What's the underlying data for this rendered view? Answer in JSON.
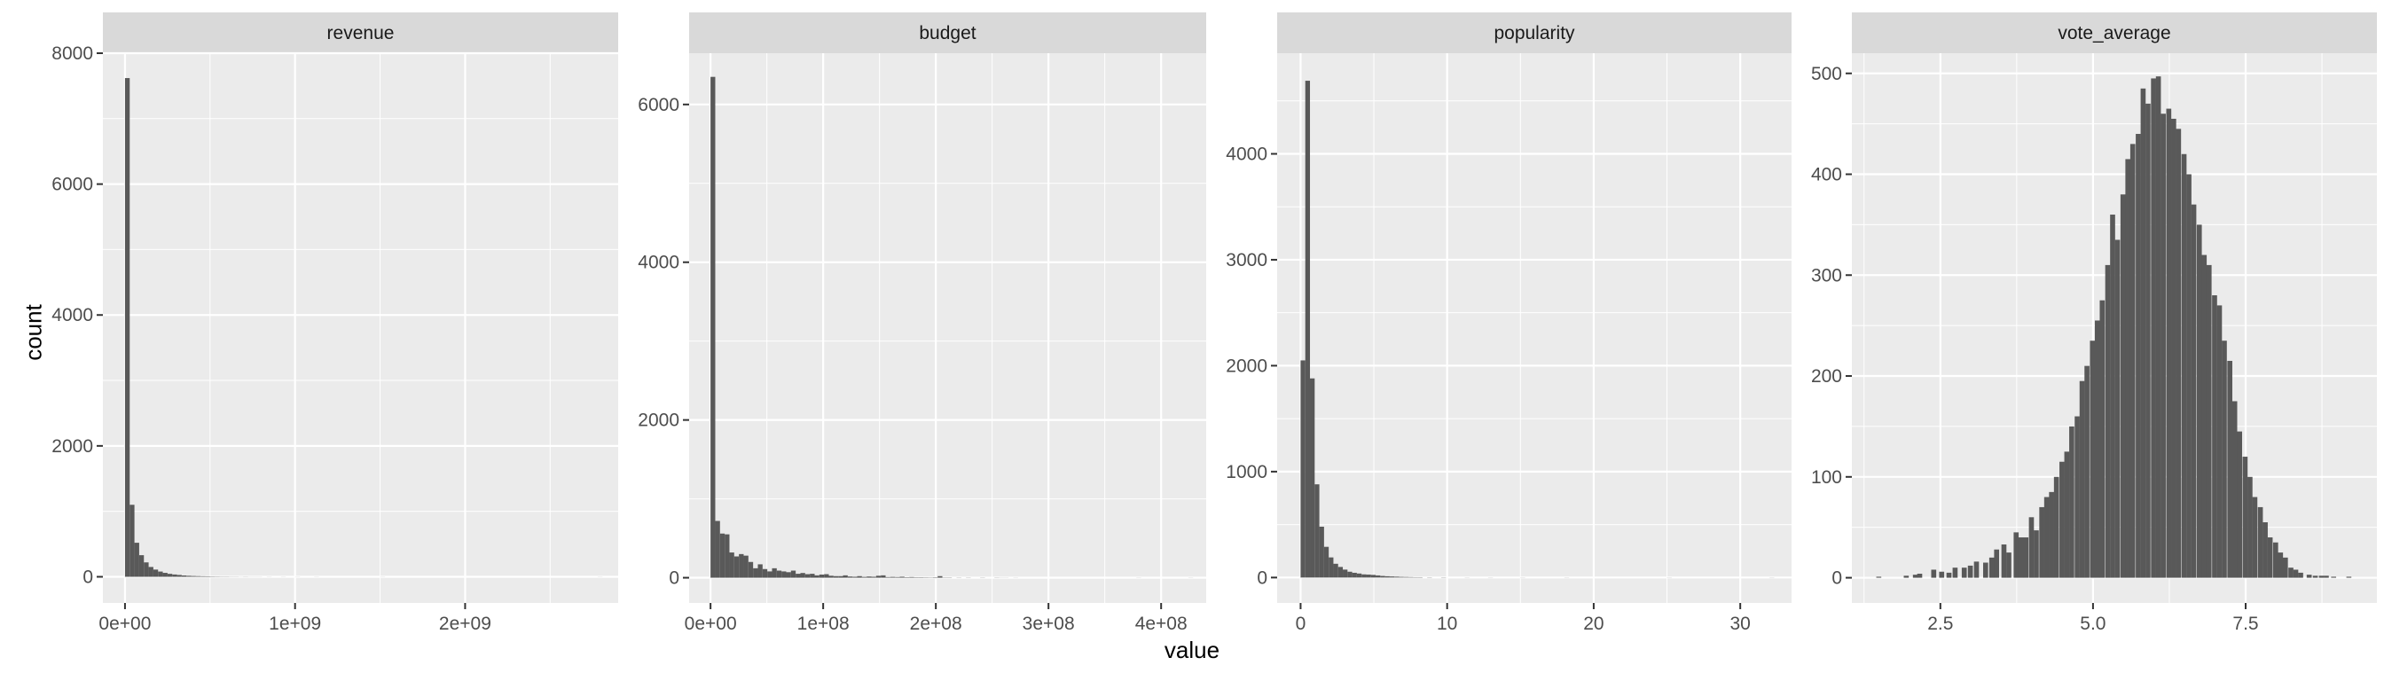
{
  "xlabel": "value",
  "ylabel": "count",
  "colors": {
    "panel_bg": "#EBEBEB",
    "strip_bg": "#D9D9D9",
    "bar": "#595959",
    "grid": "#FFFFFF",
    "text": "#4D4D4D"
  },
  "chart_data": [
    {
      "type": "bar",
      "title": "revenue",
      "xlim": [
        -130000000.0,
        2900000000.0
      ],
      "ylim": [
        -400,
        8000
      ],
      "xticks": [
        0,
        1000000000,
        2000000000
      ],
      "xtick_labels": [
        "0e+00",
        "1e+09",
        "2e+09"
      ],
      "yticks": [
        0,
        2000,
        4000,
        6000,
        8000
      ],
      "ytick_labels": [
        "0",
        "2000",
        "4000",
        "6000",
        "8000"
      ],
      "bin_width": 27800000,
      "bins": [
        [
          0,
          7620
        ],
        [
          27800000,
          1100
        ],
        [
          55600000,
          520
        ],
        [
          83400000,
          330
        ],
        [
          111200000,
          220
        ],
        [
          139000000,
          150
        ],
        [
          166800000,
          110
        ],
        [
          194600000,
          80
        ],
        [
          222400000,
          60
        ],
        [
          250200000,
          45
        ],
        [
          278000000,
          35
        ],
        [
          305800000,
          28
        ],
        [
          333600000,
          20
        ],
        [
          361400000,
          15
        ],
        [
          389200000,
          12
        ],
        [
          417000000,
          10
        ],
        [
          444800000,
          8
        ],
        [
          472600000,
          7
        ],
        [
          500400000,
          5
        ],
        [
          528200000,
          4
        ],
        [
          556000000,
          3
        ],
        [
          583800000,
          3
        ],
        [
          611600000,
          2
        ],
        [
          639400000,
          2
        ],
        [
          667200000,
          1
        ],
        [
          695000000,
          2
        ],
        [
          722800000,
          1
        ],
        [
          750600000,
          1
        ],
        [
          778400000,
          1
        ],
        [
          834000000,
          1
        ],
        [
          917400000,
          1
        ],
        [
          1000800000,
          1
        ],
        [
          1112000000,
          1
        ],
        [
          1501200000,
          1
        ],
        [
          2780000000,
          1
        ]
      ]
    },
    {
      "type": "bar",
      "title": "budget",
      "xlim": [
        -19000000.0,
        440000000.0
      ],
      "ylim": [
        -320,
        6650
      ],
      "xticks": [
        0,
        100000000,
        200000000,
        300000000,
        400000000
      ],
      "xtick_labels": [
        "0e+00",
        "1e+08",
        "2e+08",
        "3e+08",
        "4e+08"
      ],
      "yticks": [
        0,
        2000,
        4000,
        6000
      ],
      "ytick_labels": [
        "0",
        "2000",
        "4000",
        "6000"
      ],
      "bin_width": 4200000,
      "bins": [
        [
          0,
          6350
        ],
        [
          4200000,
          720
        ],
        [
          8400000,
          560
        ],
        [
          12600000,
          550
        ],
        [
          16800000,
          320
        ],
        [
          21000000,
          270
        ],
        [
          25200000,
          300
        ],
        [
          29400000,
          280
        ],
        [
          33600000,
          200
        ],
        [
          37800000,
          120
        ],
        [
          42000000,
          170
        ],
        [
          46200000,
          110
        ],
        [
          50400000,
          80
        ],
        [
          54600000,
          120
        ],
        [
          58800000,
          90
        ],
        [
          63000000,
          80
        ],
        [
          67200000,
          70
        ],
        [
          71400000,
          90
        ],
        [
          75600000,
          50
        ],
        [
          79800000,
          60
        ],
        [
          84000000,
          45
        ],
        [
          88200000,
          50
        ],
        [
          92400000,
          30
        ],
        [
          96600000,
          40
        ],
        [
          100800000,
          45
        ],
        [
          105000000,
          25
        ],
        [
          109200000,
          20
        ],
        [
          113400000,
          20
        ],
        [
          117600000,
          30
        ],
        [
          121800000,
          15
        ],
        [
          126000000,
          12
        ],
        [
          130200000,
          20
        ],
        [
          134400000,
          10
        ],
        [
          138600000,
          15
        ],
        [
          142800000,
          12
        ],
        [
          147000000,
          25
        ],
        [
          151200000,
          30
        ],
        [
          155400000,
          8
        ],
        [
          159600000,
          10
        ],
        [
          163800000,
          8
        ],
        [
          168000000,
          12
        ],
        [
          172200000,
          6
        ],
        [
          176400000,
          8
        ],
        [
          180600000,
          5
        ],
        [
          184800000,
          5
        ],
        [
          189000000,
          4
        ],
        [
          193200000,
          3
        ],
        [
          197400000,
          5
        ],
        [
          201600000,
          20
        ],
        [
          205800000,
          3
        ],
        [
          210000000,
          3
        ],
        [
          218400000,
          2
        ],
        [
          226800000,
          2
        ],
        [
          239400000,
          2
        ],
        [
          252000000,
          2
        ],
        [
          256200000,
          1
        ],
        [
          260400000,
          1
        ],
        [
          268800000,
          1
        ],
        [
          378000000,
          1
        ],
        [
          424200000,
          1
        ]
      ]
    },
    {
      "type": "bar",
      "title": "popularity",
      "xlim": [
        -1.6,
        33.5
      ],
      "ylim": [
        -240,
        4950
      ],
      "xticks": [
        0,
        10,
        20,
        30
      ],
      "xtick_labels": [
        "0",
        "10",
        "20",
        "30"
      ],
      "yticks": [
        0,
        1000,
        2000,
        3000,
        4000
      ],
      "ytick_labels": [
        "0",
        "1000",
        "2000",
        "3000",
        "4000"
      ],
      "bin_width": 0.32,
      "bins": [
        [
          0,
          2050
        ],
        [
          0.32,
          4690
        ],
        [
          0.64,
          1880
        ],
        [
          0.96,
          880
        ],
        [
          1.28,
          480
        ],
        [
          1.6,
          290
        ],
        [
          1.92,
          190
        ],
        [
          2.24,
          130
        ],
        [
          2.56,
          100
        ],
        [
          2.88,
          75
        ],
        [
          3.2,
          55
        ],
        [
          3.52,
          45
        ],
        [
          3.84,
          38
        ],
        [
          4.16,
          30
        ],
        [
          4.48,
          28
        ],
        [
          4.8,
          25
        ],
        [
          5.12,
          20
        ],
        [
          5.44,
          15
        ],
        [
          5.76,
          12
        ],
        [
          6.08,
          10
        ],
        [
          6.4,
          8
        ],
        [
          6.72,
          6
        ],
        [
          7.04,
          5
        ],
        [
          7.36,
          4
        ],
        [
          7.68,
          3
        ],
        [
          8.0,
          3
        ],
        [
          8.64,
          2
        ],
        [
          9.6,
          2
        ],
        [
          11.2,
          1
        ],
        [
          12.8,
          1
        ],
        [
          15.0,
          1
        ],
        [
          18.0,
          1
        ],
        [
          25.0,
          1
        ],
        [
          32.0,
          1
        ]
      ]
    },
    {
      "type": "bar",
      "title": "vote_average",
      "xlim": [
        1.05,
        9.65
      ],
      "ylim": [
        -25,
        520
      ],
      "xticks": [
        2.5,
        5.0,
        7.5
      ],
      "xtick_labels": [
        "2.5",
        "5.0",
        "7.5"
      ],
      "yticks": [
        0,
        100,
        200,
        300,
        400,
        500
      ],
      "ytick_labels": [
        "0",
        "100",
        "200",
        "300",
        "400",
        "500"
      ],
      "bin_width": 0.082,
      "bins": [
        [
          1.45,
          1
        ],
        [
          1.9,
          2
        ],
        [
          2.05,
          3
        ],
        [
          2.12,
          4
        ],
        [
          2.35,
          8
        ],
        [
          2.48,
          6
        ],
        [
          2.6,
          5
        ],
        [
          2.7,
          10
        ],
        [
          2.85,
          10
        ],
        [
          2.95,
          12
        ],
        [
          3.05,
          16
        ],
        [
          3.2,
          15
        ],
        [
          3.3,
          20
        ],
        [
          3.38,
          28
        ],
        [
          3.5,
          33
        ],
        [
          3.58,
          25
        ],
        [
          3.7,
          45
        ],
        [
          3.78,
          40
        ],
        [
          3.86,
          40
        ],
        [
          3.95,
          60
        ],
        [
          4.03,
          47
        ],
        [
          4.12,
          70
        ],
        [
          4.2,
          80
        ],
        [
          4.28,
          85
        ],
        [
          4.36,
          100
        ],
        [
          4.45,
          115
        ],
        [
          4.53,
          125
        ],
        [
          4.61,
          150
        ],
        [
          4.7,
          160
        ],
        [
          4.78,
          195
        ],
        [
          4.86,
          210
        ],
        [
          4.95,
          235
        ],
        [
          5.03,
          255
        ],
        [
          5.11,
          275
        ],
        [
          5.2,
          310
        ],
        [
          5.28,
          360
        ],
        [
          5.36,
          335
        ],
        [
          5.45,
          380
        ],
        [
          5.53,
          415
        ],
        [
          5.61,
          430
        ],
        [
          5.7,
          440
        ],
        [
          5.78,
          485
        ],
        [
          5.86,
          470
        ],
        [
          5.95,
          495
        ],
        [
          6.03,
          497
        ],
        [
          6.11,
          460
        ],
        [
          6.2,
          465
        ],
        [
          6.28,
          455
        ],
        [
          6.36,
          445
        ],
        [
          6.45,
          420
        ],
        [
          6.53,
          400
        ],
        [
          6.61,
          370
        ],
        [
          6.7,
          350
        ],
        [
          6.78,
          320
        ],
        [
          6.86,
          310
        ],
        [
          6.95,
          280
        ],
        [
          7.03,
          270
        ],
        [
          7.11,
          235
        ],
        [
          7.2,
          215
        ],
        [
          7.28,
          175
        ],
        [
          7.36,
          145
        ],
        [
          7.45,
          120
        ],
        [
          7.53,
          100
        ],
        [
          7.61,
          80
        ],
        [
          7.7,
          70
        ],
        [
          7.78,
          55
        ],
        [
          7.86,
          40
        ],
        [
          7.95,
          35
        ],
        [
          8.03,
          25
        ],
        [
          8.11,
          20
        ],
        [
          8.2,
          10
        ],
        [
          8.28,
          8
        ],
        [
          8.36,
          5
        ],
        [
          8.5,
          3
        ],
        [
          8.6,
          2
        ],
        [
          8.7,
          2
        ],
        [
          8.78,
          2
        ],
        [
          8.9,
          1
        ],
        [
          9.15,
          1
        ]
      ]
    }
  ]
}
